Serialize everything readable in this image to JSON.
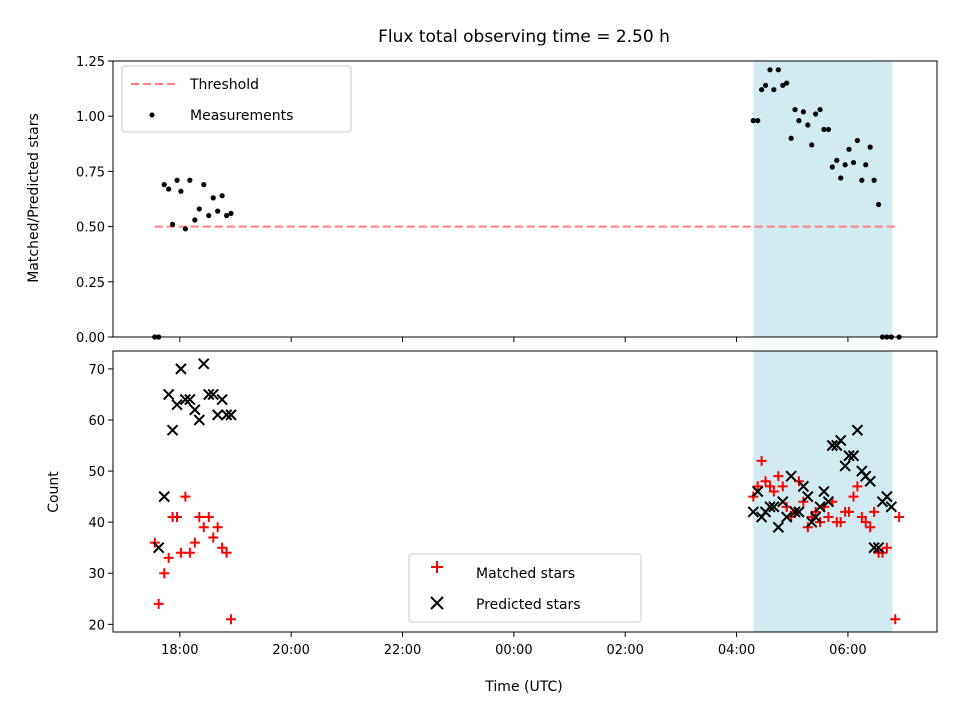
{
  "chart_data": [
    {
      "type": "scatter",
      "title": "Flux total observing time = 2.50 h",
      "xlabel": "",
      "ylabel": "Matched/Predicted stars",
      "xticklabels": [
        "18:00",
        "20:00",
        "22:00",
        "00:00",
        "02:00",
        "04:00",
        "06:00"
      ],
      "xlim_hours": [
        16.8,
        31.6
      ],
      "ylim": [
        0,
        1.25
      ],
      "yticks": [
        "0.00",
        "0.25",
        "0.50",
        "0.75",
        "1.00",
        "1.25"
      ],
      "legend": {
        "position": "top-left",
        "entries": [
          "Threshold",
          "Measurements"
        ]
      },
      "shaded_span_hours": [
        28.3,
        30.8
      ],
      "shaded_color": "#add8e6",
      "threshold": {
        "name": "Threshold",
        "value": 0.5,
        "x_hours": [
          17.55,
          30.9
        ],
        "color": "#ff7f7f"
      },
      "series": [
        {
          "name": "Measurements",
          "color": "#000000",
          "x_hours": [
            17.55,
            17.62,
            17.72,
            17.8,
            17.87,
            17.95,
            18.02,
            18.1,
            18.18,
            18.27,
            18.35,
            18.43,
            18.52,
            18.6,
            18.68,
            18.76,
            18.84,
            18.92,
            30.92,
            28.3,
            28.38,
            28.45,
            28.52,
            28.6,
            28.67,
            28.75,
            28.83,
            28.9,
            28.98,
            29.05,
            29.12,
            29.2,
            29.28,
            29.35,
            29.42,
            29.5,
            29.57,
            29.65,
            29.72,
            29.8,
            29.87,
            29.95,
            30.02,
            30.1,
            30.17,
            30.25,
            30.32,
            30.4,
            30.47,
            30.55,
            30.62,
            30.7,
            30.78
          ],
          "y": [
            0.0,
            0.0,
            0.69,
            0.67,
            0.51,
            0.71,
            0.66,
            0.49,
            0.71,
            0.53,
            0.58,
            0.69,
            0.55,
            0.63,
            0.57,
            0.64,
            0.55,
            0.56,
            0.0,
            0.98,
            0.98,
            1.12,
            1.14,
            1.21,
            1.12,
            1.21,
            1.14,
            1.15,
            0.9,
            1.03,
            0.98,
            1.02,
            0.96,
            0.87,
            1.01,
            1.03,
            0.94,
            0.94,
            0.77,
            0.8,
            0.72,
            0.78,
            0.85,
            0.79,
            0.89,
            0.71,
            0.78,
            0.86,
            0.71,
            0.6,
            0.0,
            0.0,
            0.0
          ]
        }
      ]
    },
    {
      "type": "scatter",
      "title": "",
      "xlabel": "Time (UTC)",
      "ylabel": "Count",
      "xticklabels": [
        "18:00",
        "20:00",
        "22:00",
        "00:00",
        "02:00",
        "04:00",
        "06:00"
      ],
      "xlim_hours": [
        16.8,
        31.6
      ],
      "ylim": [
        18.5,
        73.5
      ],
      "yticks": [
        "20",
        "30",
        "40",
        "50",
        "60",
        "70"
      ],
      "legend": {
        "position": "lower-center",
        "entries": [
          "Matched stars",
          "Predicted stars"
        ]
      },
      "shaded_span_hours": [
        28.3,
        30.8
      ],
      "shaded_color": "#add8e6",
      "series": [
        {
          "name": "Matched stars",
          "marker": "+",
          "color": "#ff0000",
          "x_hours": [
            17.55,
            17.62,
            17.72,
            17.8,
            17.87,
            17.95,
            18.02,
            18.1,
            18.18,
            18.27,
            18.35,
            18.43,
            18.52,
            18.6,
            18.68,
            18.76,
            18.84,
            18.92,
            30.85,
            30.92,
            28.3,
            28.38,
            28.45,
            28.52,
            28.6,
            28.67,
            28.75,
            28.83,
            28.9,
            28.98,
            29.05,
            29.12,
            29.2,
            29.28,
            29.35,
            29.42,
            29.5,
            29.57,
            29.65,
            29.72,
            29.8,
            29.87,
            29.95,
            30.02,
            30.1,
            30.17,
            30.25,
            30.32,
            30.4,
            30.47,
            30.55,
            30.62,
            30.7
          ],
          "y": [
            36,
            24,
            30,
            33,
            41,
            41,
            34,
            45,
            34,
            36,
            41,
            39,
            41,
            37,
            39,
            35,
            34,
            21,
            21,
            41,
            45,
            47,
            52,
            48,
            47,
            46,
            49,
            47,
            43,
            41,
            42,
            48,
            44,
            39,
            41,
            42,
            40,
            43,
            41,
            44,
            40,
            40,
            42,
            42,
            45,
            47,
            41,
            40,
            39,
            42,
            34,
            34,
            35
          ],
          "note_skip": 0
        },
        {
          "name": "Predicted stars",
          "marker": "x",
          "color": "#000000",
          "x_hours": [
            17.62,
            17.72,
            17.8,
            17.87,
            17.95,
            18.02,
            18.1,
            18.18,
            18.27,
            18.35,
            18.43,
            18.52,
            18.6,
            18.68,
            18.76,
            18.84,
            18.92,
            28.3,
            28.38,
            28.45,
            28.52,
            28.6,
            28.67,
            28.75,
            28.83,
            28.9,
            28.98,
            29.05,
            29.12,
            29.2,
            29.28,
            29.35,
            29.42,
            29.5,
            29.57,
            29.65,
            29.72,
            29.8,
            29.87,
            29.95,
            30.02,
            30.1,
            30.17,
            30.25,
            30.32,
            30.4,
            30.47,
            30.55,
            30.62,
            30.7,
            30.78
          ],
          "y": [
            35,
            45,
            65,
            58,
            63,
            70,
            64,
            64,
            62,
            60,
            71,
            65,
            65,
            61,
            64,
            61,
            61,
            42,
            46,
            41,
            42,
            43,
            43,
            39,
            44,
            41,
            49,
            42,
            42,
            47,
            45,
            40,
            41,
            43,
            46,
            44,
            55,
            55,
            56,
            51,
            53,
            53,
            58,
            50,
            49,
            48,
            35,
            35,
            44,
            45,
            43
          ]
        }
      ]
    }
  ]
}
